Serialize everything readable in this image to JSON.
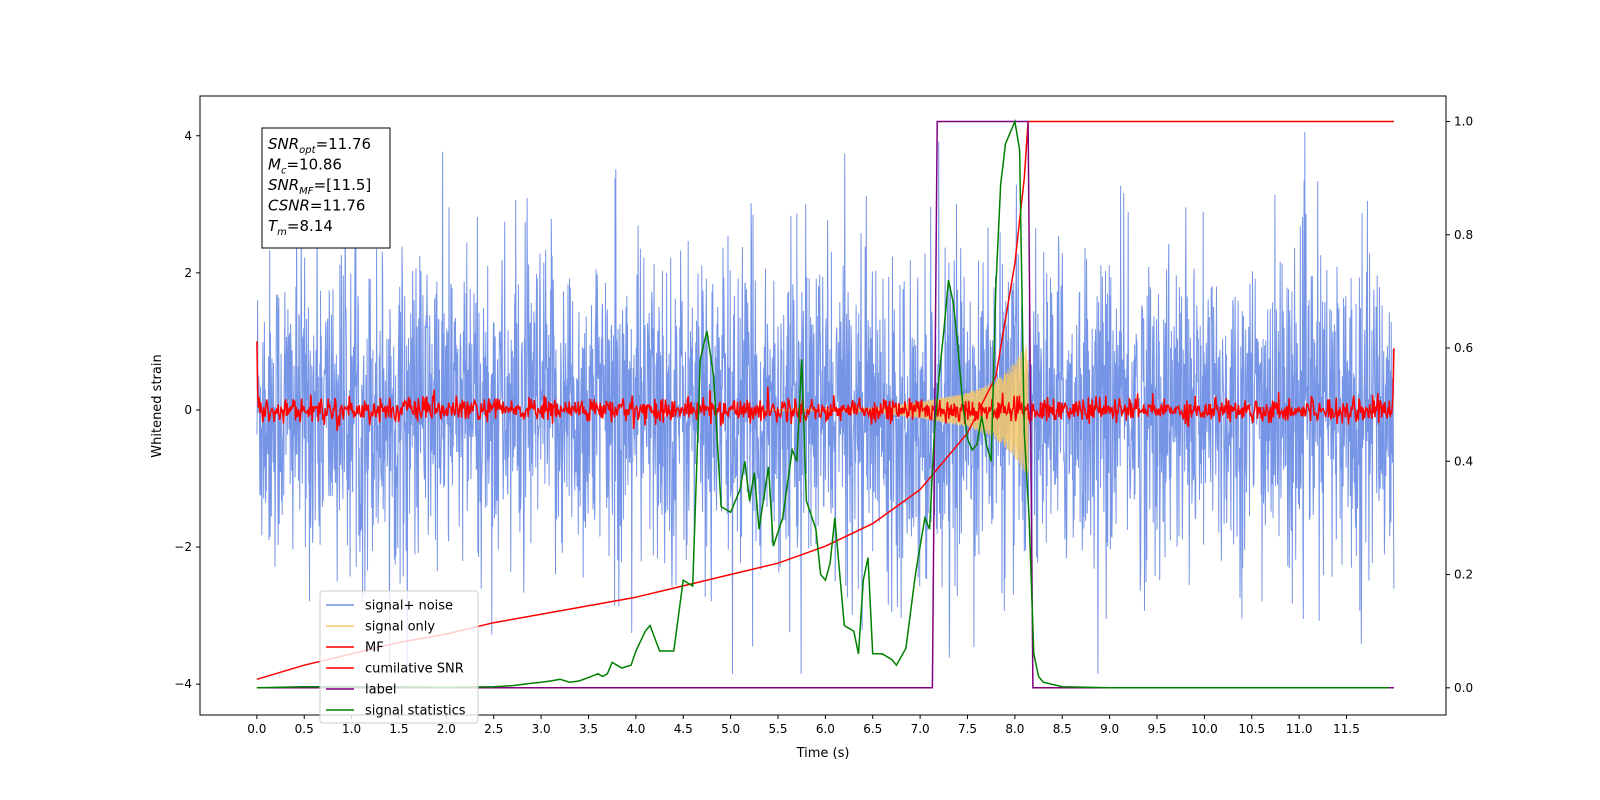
{
  "chart_data": {
    "type": "line",
    "xlabel": "Time (s)",
    "ylabel": "Whitened strain",
    "xlim": [
      -0.6,
      12.55
    ],
    "ylim": [
      -4.45,
      4.58
    ],
    "y2lim": [
      -0.048,
      1.045
    ],
    "x_ticks": [
      0.0,
      0.5,
      1.0,
      1.5,
      2.0,
      2.5,
      3.0,
      3.5,
      4.0,
      4.5,
      5.0,
      5.5,
      6.0,
      6.5,
      7.0,
      7.5,
      8.0,
      8.5,
      9.0,
      9.5,
      10.0,
      10.5,
      11.0,
      11.5
    ],
    "x_tick_labels": [
      "0.0",
      "0.5",
      "1.0",
      "1.5",
      "2.0",
      "2.5",
      "3.0",
      "3.5",
      "4.0",
      "4.5",
      "5.0",
      "5.5",
      "6.0",
      "6.5",
      "7.0",
      "7.5",
      "8.0",
      "8.5",
      "9.0",
      "9.5",
      "10.0",
      "10.5",
      "11.0",
      "11.5"
    ],
    "y_ticks": [
      4,
      2,
      0,
      -2,
      -4
    ],
    "y_tick_labels": [
      "4",
      "2",
      "0",
      "−2",
      "−4"
    ],
    "y2_ticks": [
      1.0,
      0.8,
      0.6,
      0.4,
      0.2,
      0.0
    ],
    "y2_tick_labels": [
      "1.0",
      "0.8",
      "0.6",
      "0.4",
      "0.2",
      "0.0"
    ],
    "annotation": {
      "lines": [
        {
          "base": "SNR",
          "sub": "opt",
          "value": "=11.76"
        },
        {
          "base": "M",
          "sub": "c",
          "value": "=10.86"
        },
        {
          "base": "SNR",
          "sub": "MF",
          "value": "=[11.5]"
        },
        {
          "base": "CSNR",
          "sub": "",
          "value": "=11.76"
        },
        {
          "base": "T",
          "sub": "m",
          "value": "=8.14"
        }
      ]
    },
    "legend_position": "lower-left",
    "series": [
      {
        "name": "signal+ noise",
        "axis": "left",
        "color": "#6f8fe6",
        "description": "whitened noise plus signal, approx. amplitude ±2.6 with spikes to 4.05",
        "range": [
          -3.85,
          4.05
        ],
        "t_start": 0.0,
        "t_end": 12.0
      },
      {
        "name": "signal only",
        "axis": "left",
        "color": "#f5c86a",
        "description": "chirp waveform growing in amplitude until merger",
        "envelope": [
          [
            6.5,
            0.03
          ],
          [
            7.0,
            0.12
          ],
          [
            7.5,
            0.25
          ],
          [
            7.8,
            0.42
          ],
          [
            8.0,
            0.7
          ],
          [
            8.14,
            1.0
          ]
        ],
        "t_end": 8.14
      },
      {
        "name": "MF",
        "axis": "left",
        "color": "#ff0000",
        "description": "matched filter output, noisy around 0 (approx. ±0.3), with edge spikes near 1.0",
        "range": [
          -0.35,
          1.0
        ],
        "t_start": 0.0,
        "t_end": 12.0
      },
      {
        "name": "cumilative SNR",
        "axis": "right",
        "color": "#ff0000",
        "x": [
          0.0,
          0.5,
          1.0,
          1.5,
          2.0,
          2.5,
          3.0,
          3.5,
          4.0,
          4.5,
          5.0,
          5.5,
          6.0,
          6.5,
          7.0,
          7.5,
          7.8,
          8.0,
          8.1,
          8.14,
          12.0
        ],
        "y": [
          0.015,
          0.04,
          0.06,
          0.08,
          0.095,
          0.115,
          0.13,
          0.145,
          0.16,
          0.18,
          0.2,
          0.22,
          0.25,
          0.29,
          0.35,
          0.45,
          0.55,
          0.75,
          0.9,
          1.0,
          1.0
        ]
      },
      {
        "name": "label",
        "axis": "right",
        "color": "#800080",
        "x": [
          0.0,
          7.13,
          7.18,
          8.14,
          8.19,
          12.0
        ],
        "y": [
          0.0,
          0.0,
          1.0,
          1.0,
          0.0,
          0.0
        ]
      },
      {
        "name": "signal statistics",
        "axis": "right",
        "color": "#008000",
        "x": [
          0.0,
          0.5,
          1.0,
          1.5,
          2.0,
          2.5,
          2.7,
          2.9,
          3.0,
          3.1,
          3.2,
          3.3,
          3.4,
          3.5,
          3.6,
          3.65,
          3.7,
          3.75,
          3.85,
          3.95,
          4.0,
          4.1,
          4.15,
          4.25,
          4.4,
          4.5,
          4.6,
          4.68,
          4.75,
          4.82,
          4.9,
          5.0,
          5.1,
          5.15,
          5.2,
          5.25,
          5.3,
          5.4,
          5.45,
          5.55,
          5.65,
          5.7,
          5.75,
          5.8,
          5.9,
          5.95,
          6.0,
          6.05,
          6.1,
          6.2,
          6.3,
          6.35,
          6.4,
          6.45,
          6.5,
          6.6,
          6.7,
          6.75,
          6.85,
          6.95,
          7.0,
          7.05,
          7.1,
          7.15,
          7.2,
          7.25,
          7.3,
          7.35,
          7.4,
          7.45,
          7.5,
          7.55,
          7.6,
          7.65,
          7.7,
          7.75,
          7.8,
          7.85,
          7.88,
          7.9,
          7.95,
          8.0,
          8.05,
          8.1,
          8.15,
          8.2,
          8.25,
          8.3,
          8.5,
          9.0,
          10.0,
          11.0,
          11.95
        ],
        "y": [
          0.0,
          0.002,
          0.002,
          0.002,
          0.001,
          0.002,
          0.004,
          0.008,
          0.01,
          0.012,
          0.015,
          0.01,
          0.012,
          0.018,
          0.025,
          0.02,
          0.025,
          0.045,
          0.035,
          0.04,
          0.065,
          0.1,
          0.11,
          0.065,
          0.065,
          0.19,
          0.18,
          0.58,
          0.63,
          0.55,
          0.32,
          0.31,
          0.35,
          0.4,
          0.33,
          0.38,
          0.28,
          0.39,
          0.25,
          0.3,
          0.42,
          0.4,
          0.58,
          0.33,
          0.28,
          0.2,
          0.19,
          0.22,
          0.3,
          0.11,
          0.1,
          0.06,
          0.19,
          0.23,
          0.06,
          0.06,
          0.05,
          0.04,
          0.07,
          0.2,
          0.25,
          0.3,
          0.28,
          0.45,
          0.55,
          0.63,
          0.72,
          0.68,
          0.6,
          0.5,
          0.44,
          0.42,
          0.43,
          0.48,
          0.43,
          0.4,
          0.71,
          0.89,
          0.93,
          0.96,
          0.98,
          1.0,
          0.95,
          0.45,
          0.3,
          0.06,
          0.02,
          0.01,
          0.002,
          0.0,
          0.0,
          0.0,
          0.0
        ]
      }
    ]
  }
}
